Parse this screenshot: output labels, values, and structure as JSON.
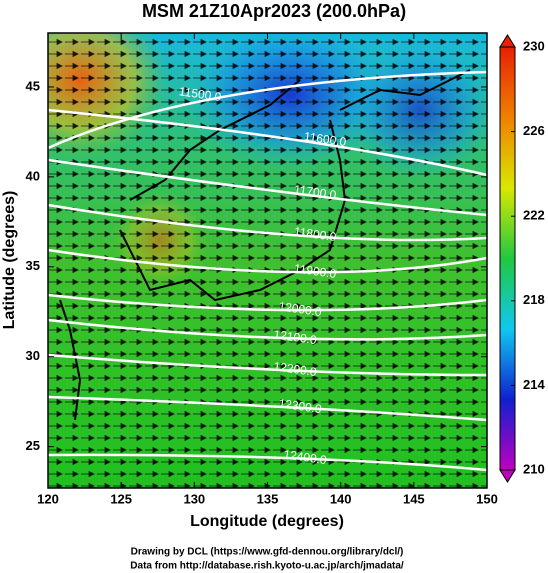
{
  "chart_data": {
    "type": "contour",
    "title": "MSM 21Z10Apr2023 (200.0hPa)",
    "x_label": "Longitude (degrees)",
    "y_label": "Latitude  (degrees)",
    "xlim": [
      120,
      150
    ],
    "xticks": [
      120,
      125,
      130,
      135,
      140,
      145,
      150
    ],
    "ylim": [
      22.7,
      48
    ],
    "yticks": [
      25,
      30,
      35,
      40,
      45
    ],
    "colorbar": {
      "lim": [
        210,
        230
      ],
      "ticks": [
        210,
        214,
        218,
        222,
        226,
        230
      ],
      "colormap": [
        "#c000c0",
        "#1020d0",
        "#10c8f0",
        "#20c840",
        "#d8e800",
        "#f08000",
        "#e82000"
      ]
    },
    "contours": [
      {
        "value": 11500,
        "label": "11500.0"
      },
      {
        "value": 11600,
        "label": "11600.0"
      },
      {
        "value": 11700,
        "label": "11700.0"
      },
      {
        "value": 11800,
        "label": "11800.0"
      },
      {
        "value": 11900,
        "label": "11900.0"
      },
      {
        "value": 12000,
        "label": "12000.0"
      },
      {
        "value": 12100,
        "label": "12100.0"
      },
      {
        "value": 12200,
        "label": "12200.0"
      },
      {
        "value": 12300,
        "label": "12300.0"
      },
      {
        "value": 12400,
        "label": "12400.0"
      }
    ],
    "footer": [
      "Drawing by DCL (https://www.gfd-dennou.org/library/dcl/)",
      "Data from http://database.rish.kyoto-u.ac.jp/arch/jmadata/"
    ]
  }
}
